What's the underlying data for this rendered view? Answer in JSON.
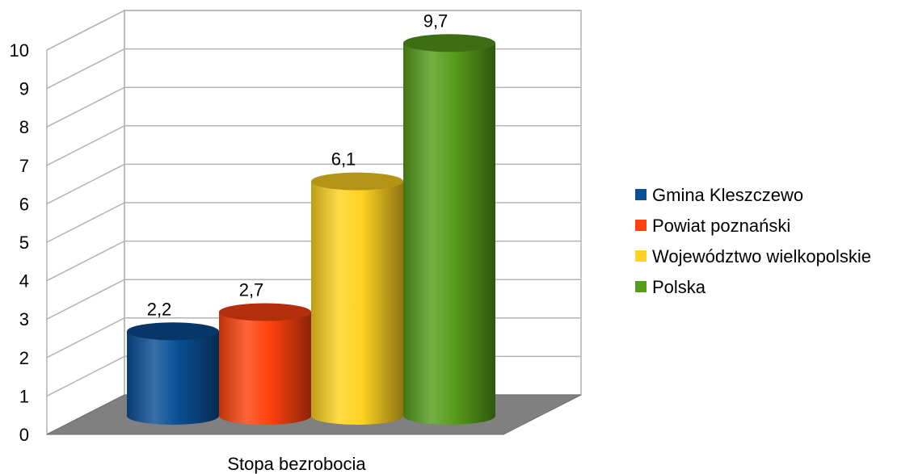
{
  "chart_data": {
    "type": "bar",
    "style": "3d-cylinder",
    "categories": [
      "Stopa bezrobocia"
    ],
    "series": [
      {
        "name": "Gmina Kleszczewo",
        "values": [
          2.2
        ],
        "label": "2,2",
        "color": "#0a4f96"
      },
      {
        "name": "Powiat poznański",
        "values": [
          2.7
        ],
        "label": "2,7",
        "color": "#ff420e"
      },
      {
        "name": "Województwo wielkopolskie",
        "values": [
          6.1
        ],
        "label": "6,1",
        "color": "#ffd320"
      },
      {
        "name": "Polska",
        "values": [
          9.7
        ],
        "label": "9,7",
        "color": "#579d1c"
      }
    ],
    "yticks": [
      "0",
      "1",
      "2",
      "3",
      "4",
      "5",
      "6",
      "7",
      "8",
      "9",
      "10"
    ],
    "ylim": [
      0,
      10
    ],
    "grid": true,
    "legend": "right",
    "floor_color": "#808080"
  }
}
